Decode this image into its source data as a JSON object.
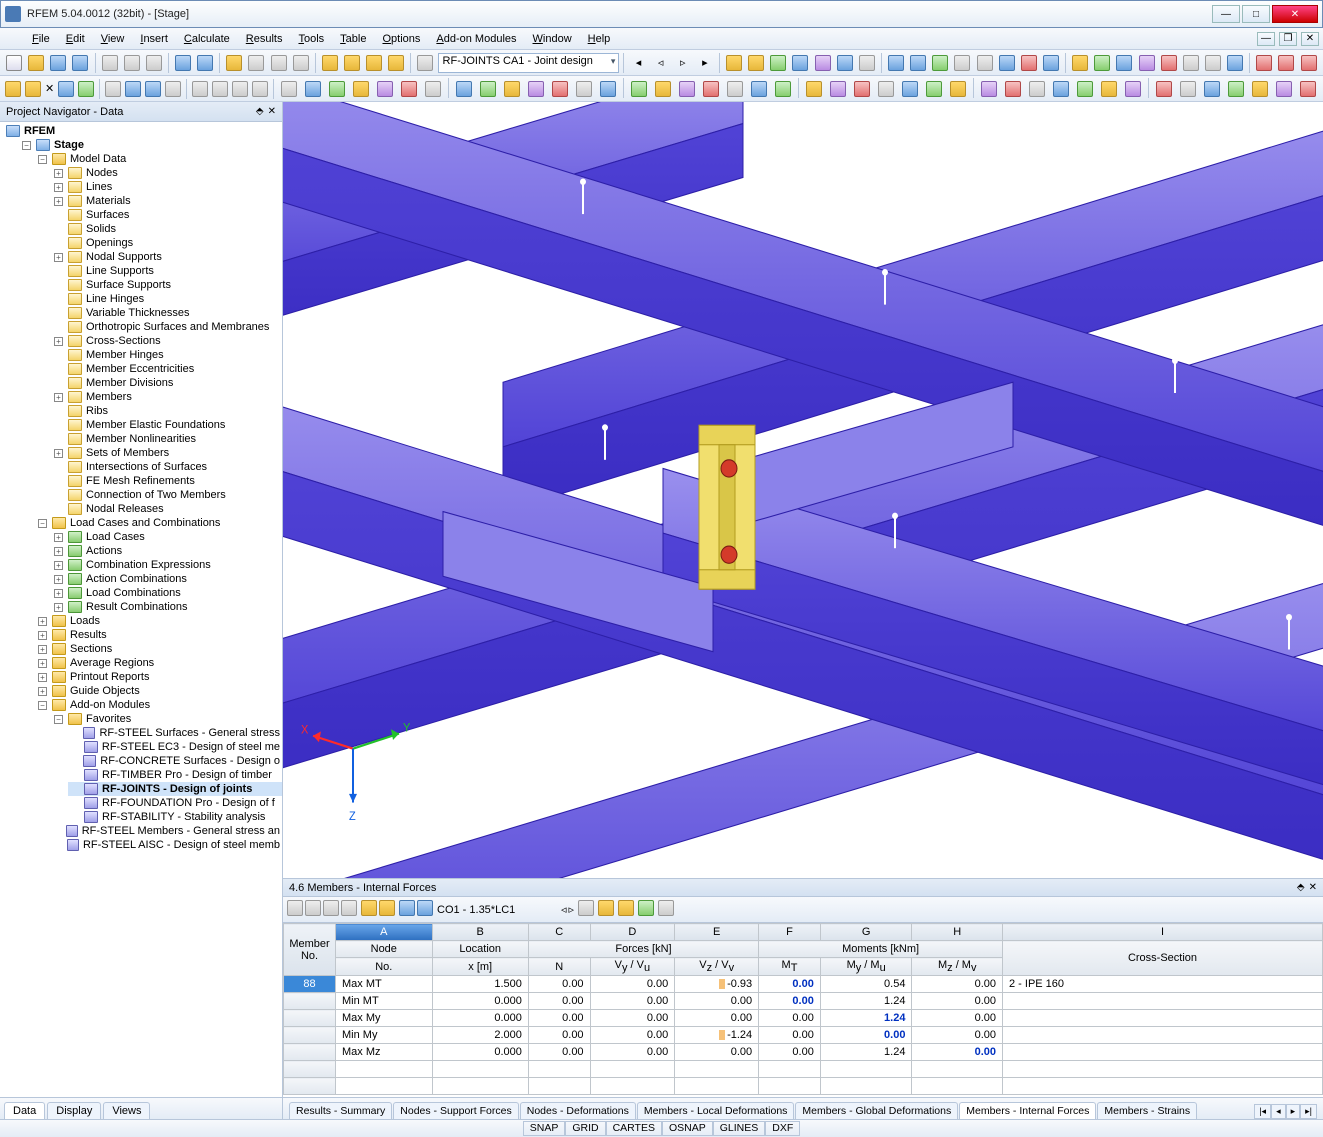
{
  "window": {
    "title": "RFEM 5.04.0012 (32bit) - [Stage]"
  },
  "menus": [
    "File",
    "Edit",
    "View",
    "Insert",
    "Calculate",
    "Results",
    "Tools",
    "Table",
    "Options",
    "Add-on Modules",
    "Window",
    "Help"
  ],
  "toolbar_combo1": "RF-JOINTS CA1 - Joint design",
  "navigator": {
    "title": "Project Navigator - Data",
    "root": "RFEM",
    "stage": "Stage",
    "model_data": "Model Data",
    "model_items": [
      "Nodes",
      "Lines",
      "Materials",
      "Surfaces",
      "Solids",
      "Openings",
      "Nodal Supports",
      "Line Supports",
      "Surface Supports",
      "Line Hinges",
      "Variable Thicknesses",
      "Orthotropic Surfaces and Membranes",
      "Cross-Sections",
      "Member Hinges",
      "Member Eccentricities",
      "Member Divisions",
      "Members",
      "Ribs",
      "Member Elastic Foundations",
      "Member Nonlinearities",
      "Sets of Members",
      "Intersections of Surfaces",
      "FE Mesh Refinements",
      "Connection of Two Members",
      "Nodal Releases"
    ],
    "loadcases": "Load Cases and Combinations",
    "lc_items": [
      "Load Cases",
      "Actions",
      "Combination Expressions",
      "Action Combinations",
      "Load Combinations",
      "Result Combinations"
    ],
    "top_items": [
      "Loads",
      "Results",
      "Sections",
      "Average Regions",
      "Printout Reports",
      "Guide Objects",
      "Add-on Modules"
    ],
    "favorites": "Favorites",
    "fav_items": [
      "RF-STEEL Surfaces - General stress",
      "RF-STEEL EC3 - Design of steel me",
      "RF-CONCRETE Surfaces - Design o",
      "RF-TIMBER Pro - Design of timber",
      "RF-JOINTS - Design of joints",
      "RF-FOUNDATION Pro - Design of f",
      "RF-STABILITY - Stability analysis"
    ],
    "steel_members": "RF-STEEL Members - General stress an",
    "steel_aisc": "RF-STEEL AISC - Design of steel memb",
    "tabs": [
      "Data",
      "Display",
      "Views"
    ]
  },
  "table_panel": {
    "title_prefix": "4.6 Members - Internal Forces",
    "combo": "CO1 - 1.35*LC1",
    "col_letters": [
      "A",
      "B",
      "C",
      "D",
      "E",
      "F",
      "G",
      "H",
      "I"
    ],
    "group_forces": "Forces [kN]",
    "group_moments": "Moments [kNm]",
    "h_member": "Member",
    "h_no": "No.",
    "h_node": "Node",
    "h_location": "Location",
    "h_xm": "x [m]",
    "h_N": "N",
    "h_Vy": "Vy / Vu",
    "h_Vz": "Vz / Vv",
    "h_MT": "MT",
    "h_My": "My / Mu",
    "h_Mz": "Mz / Mv",
    "h_cs": "Cross-Section",
    "rows": [
      {
        "mem": "88",
        "node": "Max MT",
        "x": "1.500",
        "N": "0.00",
        "Vy": "0.00",
        "Vz": "-0.93",
        "MT": "0.00",
        "My": "0.54",
        "Mz": "0.00",
        "cs": "2 - IPE 160",
        "bar": true,
        "hl": "MT"
      },
      {
        "mem": "",
        "node": "Min MT",
        "x": "0.000",
        "N": "0.00",
        "Vy": "0.00",
        "Vz": "0.00",
        "MT": "0.00",
        "My": "1.24",
        "Mz": "0.00",
        "cs": "",
        "bar": false,
        "hl": "MT"
      },
      {
        "mem": "",
        "node": "Max My",
        "x": "0.000",
        "N": "0.00",
        "Vy": "0.00",
        "Vz": "0.00",
        "MT": "0.00",
        "My": "1.24",
        "Mz": "0.00",
        "cs": "",
        "bar": false,
        "hl": "My"
      },
      {
        "mem": "",
        "node": "Min My",
        "x": "2.000",
        "N": "0.00",
        "Vy": "0.00",
        "Vz": "-1.24",
        "MT": "0.00",
        "My": "0.00",
        "Mz": "0.00",
        "cs": "",
        "bar": true,
        "hl": "My"
      },
      {
        "mem": "",
        "node": "Max Mz",
        "x": "0.000",
        "N": "0.00",
        "Vy": "0.00",
        "Vz": "0.00",
        "MT": "0.00",
        "My": "1.24",
        "Mz": "0.00",
        "cs": "",
        "bar": false,
        "hl": "Mz"
      }
    ],
    "tabs": [
      "Results - Summary",
      "Nodes - Support Forces",
      "Nodes - Deformations",
      "Members - Local Deformations",
      "Members - Global Deformations",
      "Members - Internal Forces",
      "Members - Strains"
    ],
    "active_tab": 5
  },
  "status": [
    "SNAP",
    "GRID",
    "CARTES",
    "OSNAP",
    "GLINES",
    "DXF"
  ],
  "viewport": {
    "bg": "#ffffff",
    "beam_fill": "#5143d6",
    "beam_edge": "#2d1fa8",
    "beam_light": "#9a90ee",
    "plate_fill": "#f1df6e",
    "plate_edge": "#b39c1f",
    "bolt": "#d43a2a",
    "axis_x": "#ff2a2a",
    "axis_y": "#22c02a",
    "axis_z": "#1060e0"
  }
}
